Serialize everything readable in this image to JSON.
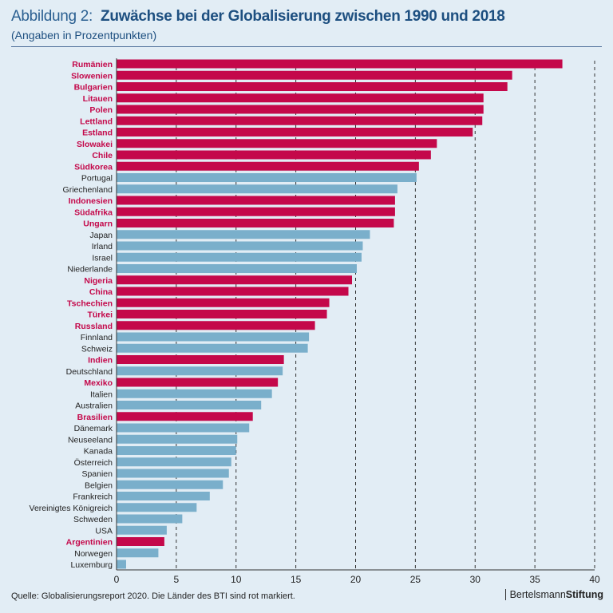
{
  "header": {
    "prefix": "Abbildung 2:",
    "title": "Zuwächse bei der Globalisierung zwischen 1990 und 2018",
    "subtitle": "(Angaben in Prozentpunkten)"
  },
  "footer": {
    "source": "Quelle: Globalisierungsreport 2020. Die Länder des BTI sind rot markiert.",
    "brand_regular": "Bertelsmann",
    "brand_bold": "Stiftung"
  },
  "colors": {
    "bti": "#c4084a",
    "other": "#7aafcb",
    "bti_label": "#c4084a",
    "other_label": "#222222"
  },
  "chart_data": {
    "type": "bar",
    "orientation": "horizontal",
    "title": "Zuwächse bei der Globalisierung zwischen 1990 und 2018",
    "xlabel": "",
    "ylabel": "",
    "xlim": [
      0,
      40
    ],
    "xticks": [
      0,
      5,
      10,
      15,
      20,
      25,
      30,
      35,
      40
    ],
    "grid": "vertical dashed",
    "categories": [
      "Rumänien",
      "Slowenien",
      "Bulgarien",
      "Litauen",
      "Polen",
      "Lettland",
      "Estland",
      "Slowakei",
      "Chile",
      "Südkorea",
      "Portugal",
      "Griechenland",
      "Indonesien",
      "Südafrika",
      "Ungarn",
      "Japan",
      "Irland",
      "Israel",
      "Niederlande",
      "Nigeria",
      "China",
      "Tschechien",
      "Türkei",
      "Russland",
      "Finnland",
      "Schweiz",
      "Indien",
      "Deutschland",
      "Mexiko",
      "Italien",
      "Australien",
      "Brasilien",
      "Dänemark",
      "Neuseeland",
      "Kanada",
      "Österreich",
      "Spanien",
      "Belgien",
      "Frankreich",
      "Vereinigtes Königreich",
      "Schweden",
      "USA",
      "Argentinien",
      "Norwegen",
      "Luxemburg"
    ],
    "values": [
      37.3,
      33.1,
      32.7,
      30.7,
      30.7,
      30.6,
      29.8,
      26.8,
      26.3,
      25.3,
      25.1,
      23.5,
      23.3,
      23.3,
      23.2,
      21.2,
      20.6,
      20.5,
      20.1,
      19.7,
      19.4,
      17.8,
      17.6,
      16.6,
      16.1,
      16.0,
      14.0,
      13.9,
      13.5,
      13.0,
      12.1,
      11.4,
      11.1,
      10.1,
      10.0,
      9.6,
      9.4,
      8.9,
      7.8,
      6.7,
      5.5,
      4.2,
      4.0,
      3.5,
      0.8
    ],
    "bti": [
      true,
      true,
      true,
      true,
      true,
      true,
      true,
      true,
      true,
      true,
      false,
      false,
      true,
      true,
      true,
      false,
      false,
      false,
      false,
      true,
      true,
      true,
      true,
      true,
      false,
      false,
      true,
      false,
      true,
      false,
      false,
      true,
      false,
      false,
      false,
      false,
      false,
      false,
      false,
      false,
      false,
      false,
      true,
      false,
      false
    ],
    "legend": "BTI-Länder rot markiert"
  }
}
